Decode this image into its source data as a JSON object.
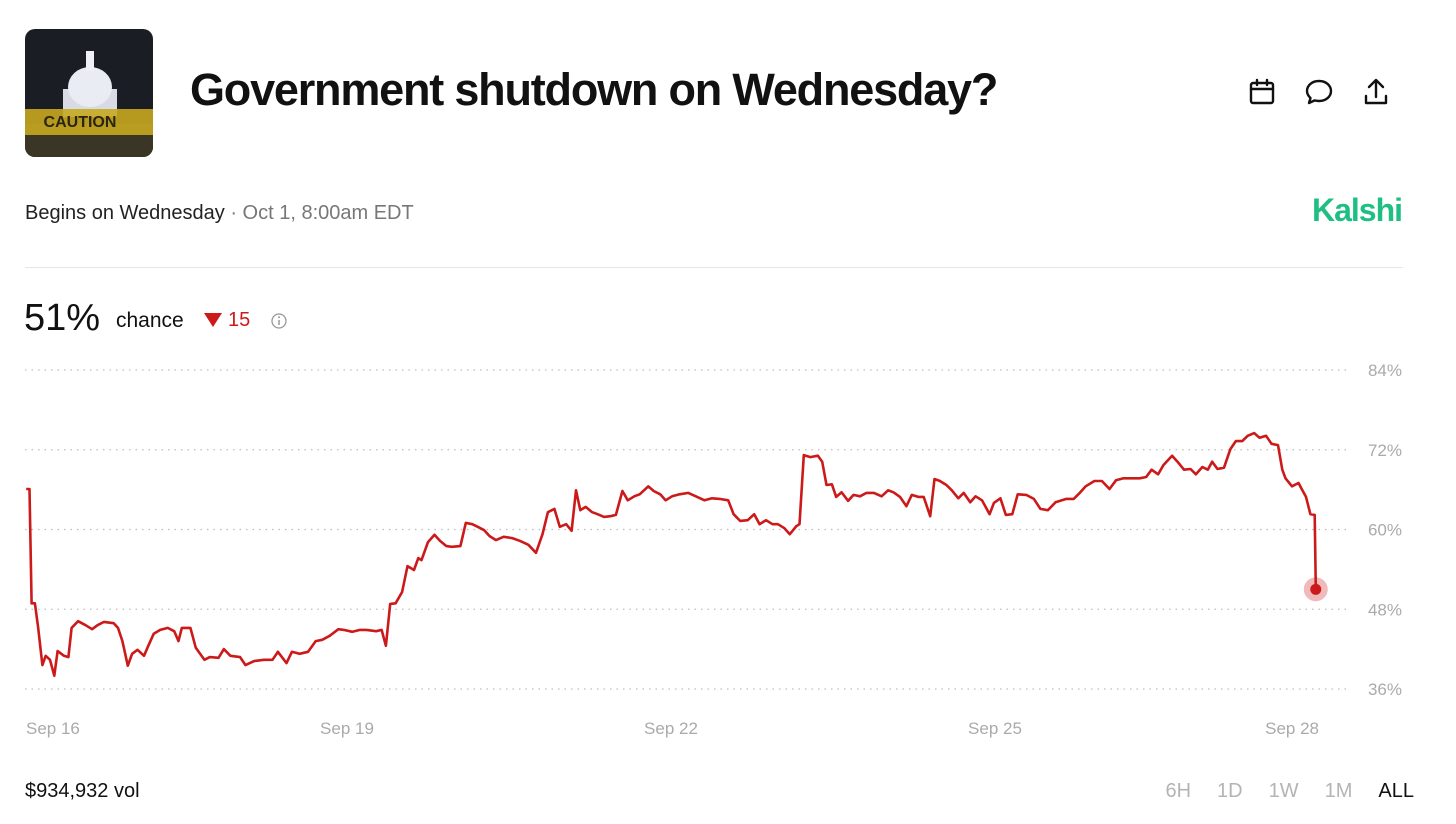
{
  "header": {
    "title": "Government shutdown on Wednesday?",
    "subtitle": "Begins on Wednesday",
    "date": "Oct 1, 8:00am EDT",
    "brand": "Kalshi",
    "thumbnail_text": "CAUTION"
  },
  "summary": {
    "probability": "51%",
    "probability_label": "chance",
    "change": "15"
  },
  "footer": {
    "volume": "$934,932 vol",
    "ranges": [
      "6H",
      "1D",
      "1W",
      "1M",
      "ALL"
    ],
    "selected_range": "ALL"
  },
  "chart_data": {
    "type": "line",
    "color": "#cc1a1a",
    "x": [
      16.03,
      16.06,
      16.08,
      16.11,
      16.14,
      16.18,
      16.21,
      16.25,
      16.29,
      16.32,
      16.38,
      16.42,
      16.45,
      16.51,
      16.58,
      16.64,
      16.69,
      16.75,
      16.84,
      16.88,
      16.92,
      16.97,
      17.01,
      17.06,
      17.12,
      17.16,
      17.21,
      17.27,
      17.34,
      17.4,
      17.44,
      17.47,
      17.55,
      17.6,
      17.68,
      17.73,
      17.81,
      17.86,
      17.92,
      18.01,
      18.06,
      18.14,
      18.23,
      18.31,
      18.36,
      18.44,
      18.49,
      18.56,
      18.64,
      18.71,
      18.77,
      18.84,
      18.92,
      18.97,
      19.05,
      19.12,
      19.18,
      19.27,
      19.32,
      19.36,
      19.4,
      19.45,
      19.51,
      19.56,
      19.62,
      19.66,
      19.69,
      19.75,
      19.81,
      19.86,
      19.92,
      19.97,
      20.05,
      20.1,
      20.16,
      20.21,
      20.27,
      20.32,
      20.38,
      20.45,
      20.53,
      20.6,
      20.68,
      20.75,
      20.81,
      20.86,
      20.92,
      20.97,
      21.03,
      21.08,
      21.12,
      21.16,
      21.21,
      21.27,
      21.32,
      21.38,
      21.44,
      21.49,
      21.55,
      21.6,
      21.66,
      21.71,
      21.79,
      21.84,
      21.9,
      21.95,
      22.01,
      22.08,
      22.16,
      22.23,
      22.31,
      22.38,
      22.45,
      22.53,
      22.58,
      22.64,
      22.71,
      22.77,
      22.82,
      22.88,
      22.94,
      22.99,
      23.05,
      23.1,
      23.16,
      23.19,
      23.23,
      23.29,
      23.36,
      23.4,
      23.44,
      23.49,
      23.53,
      23.58,
      23.64,
      23.69,
      23.75,
      23.81,
      23.88,
      23.95,
      24.01,
      24.06,
      24.12,
      24.18,
      24.23,
      24.29,
      24.34,
      24.4,
      24.44,
      24.49,
      24.55,
      24.6,
      24.66,
      24.71,
      24.77,
      24.82,
      24.88,
      24.95,
      24.99,
      25.05,
      25.1,
      25.16,
      25.21,
      25.29,
      25.36,
      25.42,
      25.49,
      25.56,
      25.66,
      25.73,
      25.79,
      25.84,
      25.92,
      25.99,
      26.06,
      26.12,
      26.19,
      26.29,
      26.34,
      26.4,
      26.45,
      26.51,
      26.56,
      26.64,
      26.69,
      26.75,
      26.81,
      26.86,
      26.92,
      26.97,
      27.01,
      27.06,
      27.12,
      27.18,
      27.23,
      27.29,
      27.34,
      27.4,
      27.45,
      27.51,
      27.56,
      27.62,
      27.66,
      27.69,
      27.75,
      27.81,
      27.84,
      27.88,
      27.92,
      27.96,
      27.97
    ],
    "values": [
      66.1,
      66.1,
      48.9,
      48.9,
      45.3,
      39.6,
      41.0,
      40.4,
      38.0,
      41.7,
      41.0,
      40.8,
      45.2,
      46.2,
      45.6,
      45.0,
      45.6,
      46.1,
      45.9,
      45.2,
      43.2,
      39.5,
      41.3,
      41.9,
      41.0,
      42.5,
      44.3,
      44.9,
      45.2,
      44.7,
      43.2,
      45.2,
      45.2,
      42.2,
      40.4,
      40.8,
      40.7,
      42.0,
      41.0,
      40.8,
      39.6,
      40.2,
      40.4,
      40.4,
      41.6,
      39.9,
      41.6,
      41.3,
      41.6,
      43.2,
      43.4,
      44.0,
      45.0,
      44.9,
      44.6,
      44.9,
      44.9,
      44.7,
      44.9,
      42.5,
      48.8,
      48.9,
      50.6,
      54.5,
      53.9,
      55.7,
      55.4,
      58.1,
      59.2,
      58.3,
      57.5,
      57.4,
      57.5,
      61.0,
      60.8,
      60.4,
      59.9,
      59.0,
      58.4,
      58.9,
      58.7,
      58.3,
      57.7,
      56.5,
      59.3,
      62.6,
      63.1,
      60.4,
      60.8,
      59.8,
      65.9,
      62.9,
      63.4,
      62.6,
      62.3,
      61.9,
      62.0,
      62.2,
      65.8,
      64.4,
      65.0,
      65.3,
      66.5,
      65.8,
      65.3,
      64.4,
      65.0,
      65.3,
      65.5,
      65.0,
      64.4,
      64.7,
      64.6,
      64.4,
      62.3,
      61.3,
      61.4,
      62.3,
      60.8,
      61.4,
      60.8,
      60.8,
      60.2,
      59.3,
      60.5,
      60.8,
      71.2,
      70.9,
      71.1,
      70.2,
      66.7,
      66.8,
      64.9,
      65.6,
      64.3,
      65.2,
      65.0,
      65.5,
      65.5,
      65.0,
      65.9,
      65.6,
      64.9,
      63.5,
      65.2,
      64.9,
      64.9,
      62.0,
      67.6,
      67.3,
      66.7,
      65.9,
      64.7,
      65.5,
      64.1,
      65.0,
      64.4,
      62.3,
      64.0,
      64.7,
      62.2,
      62.3,
      65.3,
      65.2,
      64.6,
      63.1,
      62.9,
      64.1,
      64.6,
      64.6,
      65.6,
      66.5,
      67.3,
      67.3,
      66.1,
      67.4,
      67.7,
      67.7,
      67.7,
      67.9,
      69.0,
      68.3,
      69.7,
      71.1,
      70.2,
      69.0,
      69.1,
      68.3,
      69.4,
      69.0,
      70.2,
      69.1,
      69.3,
      72.1,
      73.3,
      73.3,
      74.1,
      74.5,
      73.8,
      74.1,
      72.9,
      72.7,
      69.0,
      67.7,
      66.5,
      67.0,
      66.1,
      64.9,
      62.3,
      62.2,
      51.0
    ],
    "xlim": [
      16,
      28
    ],
    "xticks": [
      {
        "value": 16,
        "label": "Sep 16"
      },
      {
        "value": 19,
        "label": "Sep 19"
      },
      {
        "value": 22,
        "label": "Sep 22"
      },
      {
        "value": 25,
        "label": "Sep 25"
      },
      {
        "value": 28,
        "label": "Sep 28"
      }
    ],
    "ylim": [
      36,
      84
    ],
    "yticks": [
      {
        "value": 36,
        "label": "36%"
      },
      {
        "value": 48,
        "label": "48%"
      },
      {
        "value": 60,
        "label": "60%"
      },
      {
        "value": 72,
        "label": "72%"
      },
      {
        "value": 84,
        "label": "84%"
      }
    ],
    "grid": true
  }
}
